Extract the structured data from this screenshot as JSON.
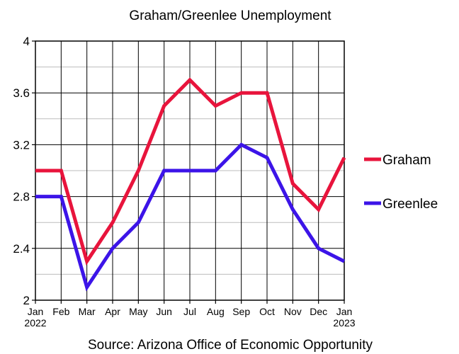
{
  "chart_data": {
    "type": "line",
    "title": "Graham/Greenlee Unemployment",
    "source": "Source: Arizona Office of Economic Opportunity",
    "categories": [
      "Jan",
      "Feb",
      "Mar",
      "Apr",
      "May",
      "Jun",
      "Jul",
      "Aug",
      "Sep",
      "Oct",
      "Nov",
      "Dec",
      "Jan"
    ],
    "category_sublabels": [
      "2022",
      "",
      "",
      "",
      "",
      "",
      "",
      "",
      "",
      "",
      "",
      "",
      "2023"
    ],
    "yticks": [
      "2",
      "2.4",
      "2.8",
      "3.2",
      "3.6",
      "4"
    ],
    "ylim": [
      2,
      4
    ],
    "grid": true,
    "legend_position": "right",
    "series": [
      {
        "name": "Graham",
        "color": "#e8143c",
        "values": [
          3.0,
          3.0,
          2.3,
          2.6,
          3.0,
          3.5,
          3.7,
          3.5,
          3.6,
          3.6,
          2.9,
          2.7,
          3.1
        ]
      },
      {
        "name": "Greenlee",
        "color": "#3c14e8",
        "values": [
          2.8,
          2.8,
          2.1,
          2.4,
          2.6,
          3.0,
          3.0,
          3.0,
          3.2,
          3.1,
          2.7,
          2.4,
          2.3
        ]
      }
    ]
  }
}
